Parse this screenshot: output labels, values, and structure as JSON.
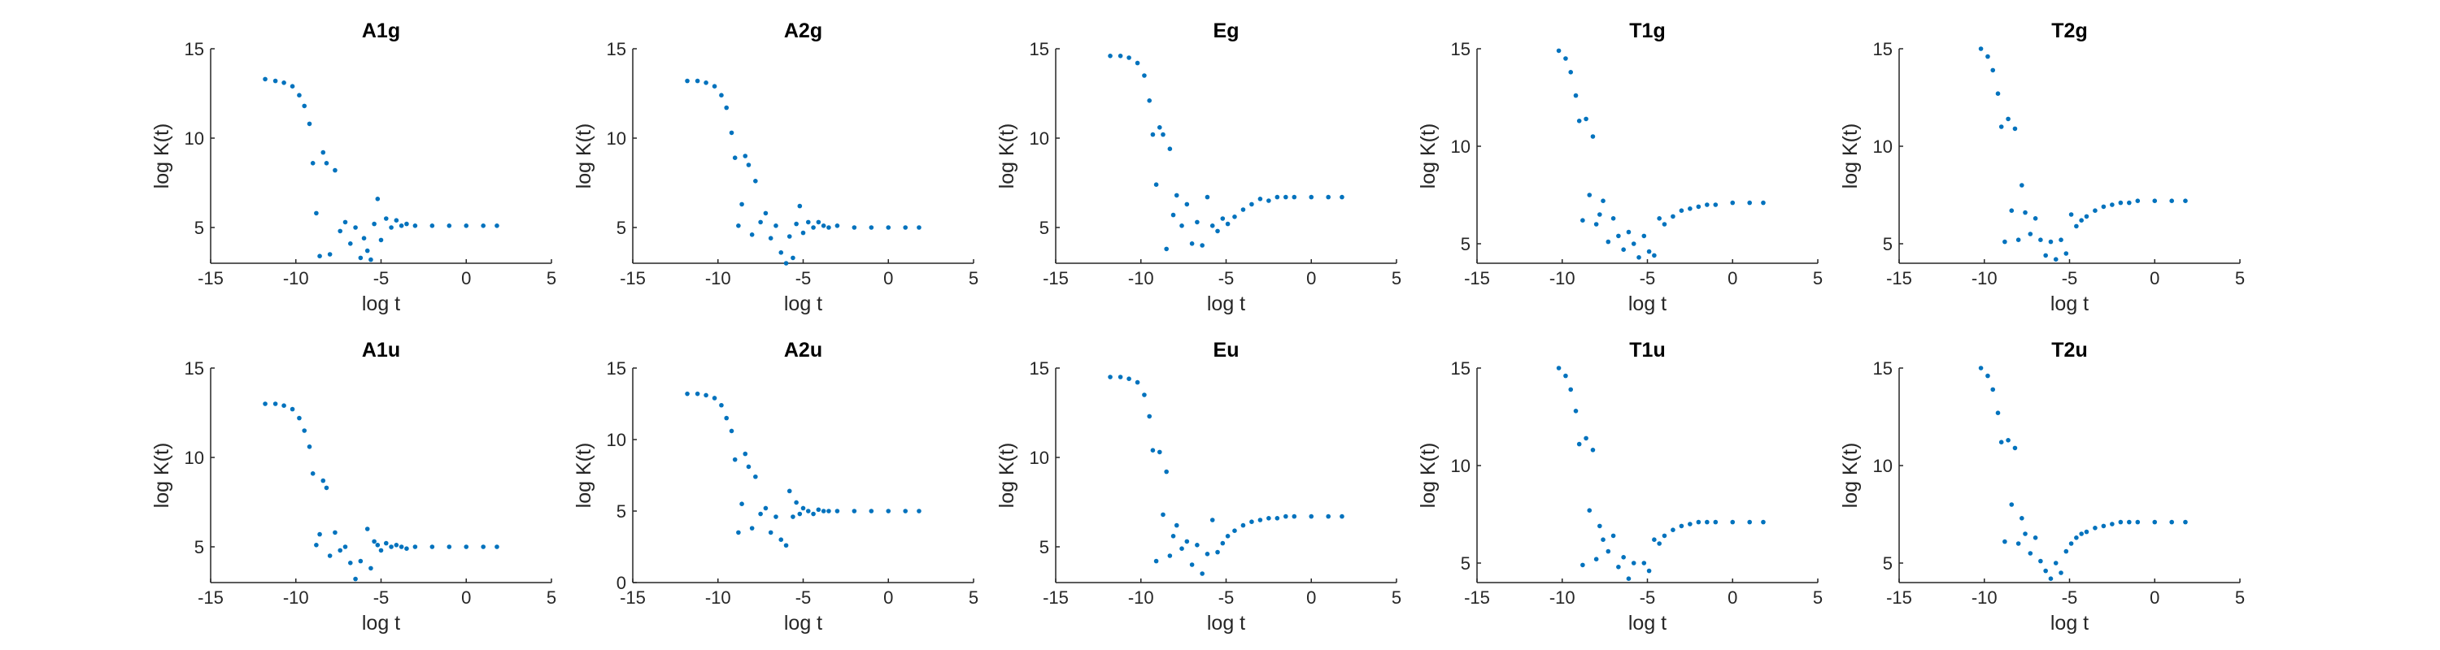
{
  "figure": {
    "marker_color": "#0072BD",
    "axis_color": "#262626"
  },
  "chart_data": [
    {
      "type": "scatter",
      "title": "A1g",
      "xlabel": "log t",
      "ylabel": "log K(t)",
      "xlim": [
        -15,
        5
      ],
      "ylim": [
        3,
        15
      ],
      "xticks": [
        -15,
        -10,
        -5,
        0,
        5
      ],
      "yticks": [
        5,
        10,
        15
      ],
      "grid": false,
      "series": [
        {
          "x": [
            -11.8,
            -11.2,
            -10.7,
            -10.2,
            -9.8,
            -9.5,
            -9.2,
            -9.0,
            -8.8,
            -8.6,
            -8.4,
            -8.2,
            -8.0,
            -7.7,
            -7.4,
            -7.1,
            -6.8,
            -6.5,
            -6.2,
            -6.0,
            -5.8,
            -5.6,
            -5.4,
            -5.2,
            -5.0,
            -4.7,
            -4.4,
            -4.1,
            -3.8,
            -3.5,
            -3.0,
            -2.0,
            -1.0,
            0.0,
            1.0,
            1.8
          ],
          "y": [
            13.3,
            13.2,
            13.1,
            12.9,
            12.4,
            11.8,
            10.8,
            8.6,
            5.8,
            3.4,
            9.2,
            8.6,
            3.5,
            8.2,
            4.8,
            5.3,
            4.1,
            5.0,
            3.3,
            4.4,
            3.7,
            3.2,
            5.2,
            6.6,
            4.3,
            5.5,
            5.0,
            5.4,
            5.1,
            5.2,
            5.1,
            5.1,
            5.1,
            5.1,
            5.1,
            5.1
          ]
        }
      ]
    },
    {
      "type": "scatter",
      "title": "A2g",
      "xlabel": "log t",
      "ylabel": "log K(t)",
      "xlim": [
        -15,
        5
      ],
      "ylim": [
        3,
        15
      ],
      "xticks": [
        -15,
        -10,
        -5,
        0,
        5
      ],
      "yticks": [
        5,
        10,
        15
      ],
      "grid": false,
      "series": [
        {
          "x": [
            -11.8,
            -11.2,
            -10.7,
            -10.2,
            -9.8,
            -9.5,
            -9.2,
            -9.0,
            -8.8,
            -8.6,
            -8.4,
            -8.2,
            -8.0,
            -7.8,
            -7.5,
            -7.2,
            -6.9,
            -6.6,
            -6.3,
            -6.0,
            -5.8,
            -5.6,
            -5.4,
            -5.2,
            -5.0,
            -4.7,
            -4.4,
            -4.1,
            -3.8,
            -3.5,
            -3.0,
            -2.0,
            -1.0,
            0.0,
            1.0,
            1.8
          ],
          "y": [
            13.2,
            13.2,
            13.1,
            12.9,
            12.4,
            11.7,
            10.3,
            8.9,
            5.1,
            6.3,
            9.0,
            8.5,
            4.6,
            7.6,
            5.3,
            5.8,
            4.4,
            5.1,
            3.6,
            3.0,
            4.5,
            3.3,
            5.2,
            6.2,
            4.7,
            5.3,
            5.0,
            5.3,
            5.1,
            5.0,
            5.1,
            5.0,
            5.0,
            5.0,
            5.0,
            5.0
          ]
        }
      ]
    },
    {
      "type": "scatter",
      "title": "Eg",
      "xlabel": "log t",
      "ylabel": "log K(t)",
      "xlim": [
        -15,
        5
      ],
      "ylim": [
        3,
        15
      ],
      "xticks": [
        -15,
        -10,
        -5,
        0,
        5
      ],
      "yticks": [
        5,
        10,
        15
      ],
      "grid": false,
      "series": [
        {
          "x": [
            -11.8,
            -11.2,
            -10.7,
            -10.2,
            -9.8,
            -9.5,
            -9.3,
            -9.1,
            -8.9,
            -8.7,
            -8.5,
            -8.3,
            -8.1,
            -7.9,
            -7.6,
            -7.3,
            -7.0,
            -6.7,
            -6.4,
            -6.1,
            -5.8,
            -5.5,
            -5.2,
            -4.9,
            -4.5,
            -4.0,
            -3.5,
            -3.0,
            -2.5,
            -2.0,
            -1.5,
            -1.0,
            0.0,
            1.0,
            1.8
          ],
          "y": [
            14.6,
            14.6,
            14.5,
            14.2,
            13.5,
            12.1,
            10.2,
            7.4,
            10.6,
            10.2,
            3.8,
            9.4,
            5.7,
            6.8,
            5.1,
            6.3,
            4.1,
            5.3,
            4.0,
            6.7,
            5.1,
            4.8,
            5.5,
            5.2,
            5.6,
            6.0,
            6.3,
            6.6,
            6.5,
            6.7,
            6.7,
            6.7,
            6.7,
            6.7,
            6.7
          ]
        }
      ]
    },
    {
      "type": "scatter",
      "title": "T1g",
      "xlabel": "log t",
      "ylabel": "log K(t)",
      "xlim": [
        -15,
        5
      ],
      "ylim": [
        4,
        15
      ],
      "xticks": [
        -15,
        -10,
        -5,
        0,
        5
      ],
      "yticks": [
        5,
        10,
        15
      ],
      "grid": false,
      "series": [
        {
          "x": [
            -11.8,
            -11.2,
            -10.7,
            -10.2,
            -9.8,
            -9.5,
            -9.2,
            -9.0,
            -8.8,
            -8.6,
            -8.4,
            -8.2,
            -8.0,
            -7.8,
            -7.6,
            -7.3,
            -7.0,
            -6.7,
            -6.4,
            -6.1,
            -5.8,
            -5.5,
            -5.2,
            -4.9,
            -4.6,
            -4.3,
            -4.0,
            -3.5,
            -3.0,
            -2.5,
            -2.0,
            -1.5,
            -1.0,
            0.0,
            1.0,
            1.8
          ],
          "y": [
            15.2,
            15.2,
            15.1,
            14.9,
            14.5,
            13.8,
            12.6,
            11.3,
            6.2,
            11.4,
            7.5,
            10.5,
            6.0,
            6.5,
            7.2,
            5.1,
            6.3,
            5.4,
            4.7,
            5.6,
            5.0,
            4.3,
            5.4,
            4.6,
            4.4,
            6.3,
            6.0,
            6.4,
            6.7,
            6.8,
            6.9,
            7.0,
            7.0,
            7.1,
            7.1,
            7.1
          ]
        }
      ]
    },
    {
      "type": "scatter",
      "title": "T2g",
      "xlabel": "log t",
      "ylabel": "log K(t)",
      "xlim": [
        -15,
        5
      ],
      "ylim": [
        4,
        15
      ],
      "xticks": [
        -15,
        -10,
        -5,
        0,
        5
      ],
      "yticks": [
        5,
        10,
        15
      ],
      "grid": false,
      "series": [
        {
          "x": [
            -11.8,
            -11.2,
            -10.7,
            -10.2,
            -9.8,
            -9.5,
            -9.2,
            -9.0,
            -8.8,
            -8.6,
            -8.4,
            -8.2,
            -8.0,
            -7.8,
            -7.6,
            -7.3,
            -7.0,
            -6.7,
            -6.4,
            -6.1,
            -5.8,
            -5.5,
            -5.2,
            -4.9,
            -4.6,
            -4.3,
            -4.0,
            -3.5,
            -3.0,
            -2.5,
            -2.0,
            -1.5,
            -1.0,
            0.0,
            1.0,
            1.8
          ],
          "y": [
            15.3,
            15.3,
            15.2,
            15.0,
            14.6,
            13.9,
            12.7,
            11.0,
            5.1,
            11.4,
            6.7,
            10.9,
            5.2,
            8.0,
            6.6,
            5.5,
            6.3,
            5.2,
            4.4,
            5.1,
            4.2,
            5.2,
            4.5,
            6.5,
            5.9,
            6.2,
            6.4,
            6.7,
            6.9,
            7.0,
            7.1,
            7.1,
            7.2,
            7.2,
            7.2,
            7.2
          ]
        }
      ]
    },
    {
      "type": "scatter",
      "title": "A1u",
      "xlabel": "log t",
      "ylabel": "log K(t)",
      "xlim": [
        -15,
        5
      ],
      "ylim": [
        3,
        15
      ],
      "xticks": [
        -15,
        -10,
        -5,
        0,
        5
      ],
      "yticks": [
        5,
        10,
        15
      ],
      "grid": false,
      "series": [
        {
          "x": [
            -11.8,
            -11.2,
            -10.7,
            -10.2,
            -9.8,
            -9.5,
            -9.2,
            -9.0,
            -8.8,
            -8.6,
            -8.4,
            -8.2,
            -8.0,
            -7.7,
            -7.4,
            -7.1,
            -6.8,
            -6.5,
            -6.2,
            -6.0,
            -5.8,
            -5.6,
            -5.4,
            -5.2,
            -5.0,
            -4.7,
            -4.4,
            -4.1,
            -3.8,
            -3.5,
            -3.0,
            -2.0,
            -1.0,
            0.0,
            1.0,
            1.8
          ],
          "y": [
            13.0,
            13.0,
            12.9,
            12.7,
            12.2,
            11.5,
            10.6,
            9.1,
            5.1,
            5.7,
            8.7,
            8.3,
            4.5,
            5.8,
            4.8,
            5.0,
            4.1,
            3.2,
            4.2,
            2.9,
            6.0,
            3.8,
            5.3,
            5.1,
            4.8,
            5.2,
            5.0,
            5.1,
            5.0,
            4.9,
            5.0,
            5.0,
            5.0,
            5.0,
            5.0,
            5.0
          ]
        }
      ]
    },
    {
      "type": "scatter",
      "title": "A2u",
      "xlabel": "log t",
      "ylabel": "log K(t)",
      "xlim": [
        -15,
        5
      ],
      "ylim": [
        0,
        15
      ],
      "xticks": [
        -15,
        -10,
        -5,
        0,
        5
      ],
      "yticks": [
        0,
        5,
        10,
        15
      ],
      "grid": false,
      "series": [
        {
          "x": [
            -11.8,
            -11.2,
            -10.7,
            -10.2,
            -9.8,
            -9.5,
            -9.2,
            -9.0,
            -8.8,
            -8.6,
            -8.4,
            -8.2,
            -8.0,
            -7.8,
            -7.5,
            -7.2,
            -6.9,
            -6.6,
            -6.3,
            -6.0,
            -5.8,
            -5.6,
            -5.4,
            -5.2,
            -5.0,
            -4.7,
            -4.4,
            -4.1,
            -3.8,
            -3.5,
            -3.0,
            -2.0,
            -1.0,
            0.0,
            1.0,
            1.8
          ],
          "y": [
            13.2,
            13.2,
            13.1,
            12.9,
            12.4,
            11.5,
            10.6,
            8.6,
            3.5,
            5.5,
            9.0,
            8.1,
            3.8,
            7.4,
            4.8,
            5.2,
            3.5,
            4.6,
            3.0,
            2.6,
            6.4,
            4.6,
            5.6,
            4.8,
            5.2,
            5.0,
            4.8,
            5.1,
            5.0,
            5.0,
            5.0,
            5.0,
            5.0,
            5.0,
            5.0,
            5.0
          ]
        }
      ]
    },
    {
      "type": "scatter",
      "title": "Eu",
      "xlabel": "log t",
      "ylabel": "log K(t)",
      "xlim": [
        -15,
        5
      ],
      "ylim": [
        3,
        15
      ],
      "xticks": [
        -15,
        -10,
        -5,
        0,
        5
      ],
      "yticks": [
        5,
        10,
        15
      ],
      "grid": false,
      "series": [
        {
          "x": [
            -11.8,
            -11.2,
            -10.7,
            -10.2,
            -9.8,
            -9.5,
            -9.3,
            -9.1,
            -8.9,
            -8.7,
            -8.5,
            -8.3,
            -8.1,
            -7.9,
            -7.6,
            -7.3,
            -7.0,
            -6.7,
            -6.4,
            -6.1,
            -5.8,
            -5.5,
            -5.2,
            -4.9,
            -4.5,
            -4.0,
            -3.5,
            -3.0,
            -2.5,
            -2.0,
            -1.5,
            -1.0,
            0.0,
            1.0,
            1.8
          ],
          "y": [
            14.5,
            14.5,
            14.4,
            14.2,
            13.5,
            12.3,
            10.4,
            4.2,
            10.3,
            6.8,
            9.2,
            4.5,
            5.6,
            6.2,
            4.9,
            5.3,
            4.0,
            5.1,
            3.5,
            4.6,
            6.5,
            4.7,
            5.2,
            5.6,
            5.9,
            6.2,
            6.4,
            6.5,
            6.6,
            6.6,
            6.7,
            6.7,
            6.7,
            6.7,
            6.7
          ]
        }
      ]
    },
    {
      "type": "scatter",
      "title": "T1u",
      "xlabel": "log t",
      "ylabel": "log K(t)",
      "xlim": [
        -15,
        5
      ],
      "ylim": [
        4,
        15
      ],
      "xticks": [
        -15,
        -10,
        -5,
        0,
        5
      ],
      "yticks": [
        5,
        10,
        15
      ],
      "grid": false,
      "series": [
        {
          "x": [
            -11.8,
            -11.2,
            -10.7,
            -10.2,
            -9.8,
            -9.5,
            -9.2,
            -9.0,
            -8.8,
            -8.6,
            -8.4,
            -8.2,
            -8.0,
            -7.8,
            -7.6,
            -7.3,
            -7.0,
            -6.7,
            -6.4,
            -6.1,
            -5.8,
            -5.5,
            -5.2,
            -4.9,
            -4.6,
            -4.3,
            -4.0,
            -3.5,
            -3.0,
            -2.5,
            -2.0,
            -1.5,
            -1.0,
            0.0,
            1.0,
            1.8
          ],
          "y": [
            15.3,
            15.3,
            15.2,
            15.0,
            14.6,
            13.9,
            12.8,
            11.1,
            4.9,
            11.4,
            7.7,
            10.8,
            5.2,
            6.9,
            6.2,
            5.6,
            6.4,
            4.8,
            5.3,
            4.2,
            5.0,
            3.9,
            5.0,
            4.6,
            6.2,
            6.0,
            6.4,
            6.7,
            6.9,
            7.0,
            7.1,
            7.1,
            7.1,
            7.1,
            7.1,
            7.1
          ]
        }
      ]
    },
    {
      "type": "scatter",
      "title": "T2u",
      "xlabel": "log t",
      "ylabel": "log K(t)",
      "xlim": [
        -15,
        5
      ],
      "ylim": [
        4,
        15
      ],
      "xticks": [
        -15,
        -10,
        -5,
        0,
        5
      ],
      "yticks": [
        5,
        10,
        15
      ],
      "grid": false,
      "series": [
        {
          "x": [
            -11.8,
            -11.2,
            -10.7,
            -10.2,
            -9.8,
            -9.5,
            -9.2,
            -9.0,
            -8.8,
            -8.6,
            -8.4,
            -8.2,
            -8.0,
            -7.8,
            -7.6,
            -7.3,
            -7.0,
            -6.7,
            -6.4,
            -6.1,
            -5.8,
            -5.5,
            -5.2,
            -4.9,
            -4.6,
            -4.3,
            -4.0,
            -3.5,
            -3.0,
            -2.5,
            -2.0,
            -1.5,
            -1.0,
            0.0,
            1.0,
            1.8
          ],
          "y": [
            15.3,
            15.3,
            15.2,
            15.0,
            14.6,
            13.9,
            12.7,
            11.2,
            6.1,
            11.3,
            8.0,
            10.9,
            6.0,
            7.3,
            6.5,
            5.5,
            6.3,
            5.1,
            4.6,
            4.2,
            5.0,
            4.5,
            5.6,
            6.0,
            6.3,
            6.5,
            6.6,
            6.8,
            6.9,
            7.0,
            7.1,
            7.1,
            7.1,
            7.1,
            7.1,
            7.1
          ]
        }
      ]
    }
  ]
}
